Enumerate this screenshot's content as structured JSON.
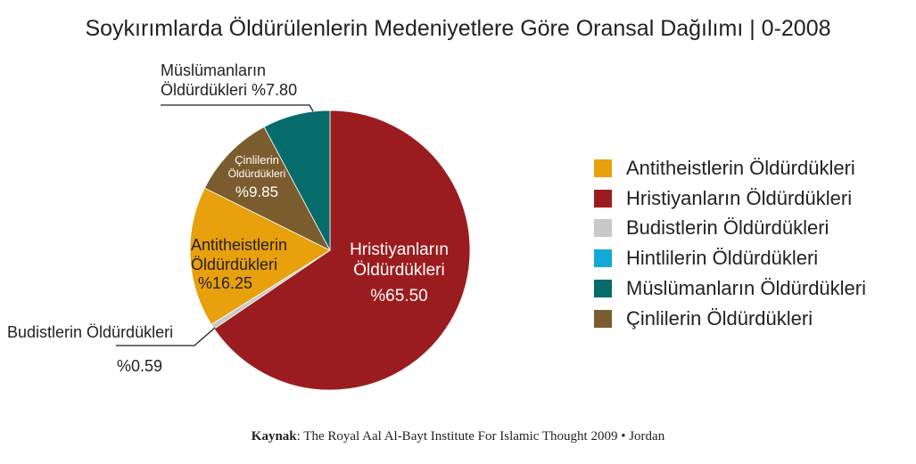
{
  "title": "Soykırımlarda Öldürülenlerin Medeniyetlere Göre Oransal Dağılımı | 0-2008",
  "chart_data": {
    "type": "pie",
    "title": "Soykırımlarda Öldürülenlerin Medeniyetlere Göre Oransal Dağılımı | 0-2008",
    "slices": [
      {
        "name": "Hristiyanların Öldürdükleri",
        "value": 65.5,
        "color": "#9b1c1f"
      },
      {
        "name": "Budistlerin Öldürdükleri",
        "value": 0.59,
        "color": "#c8c8c8"
      },
      {
        "name": "Antitheistlerin Öldürdükleri",
        "value": 16.25,
        "color": "#e8a00c"
      },
      {
        "name": "Çinlilerin Öldürdükleri",
        "value": 9.85,
        "color": "#7a5c2e"
      },
      {
        "name": "Müslümanların Öldürdükleri",
        "value": 7.8,
        "color": "#056b6b"
      }
    ],
    "legend": {
      "position": "right",
      "items": [
        {
          "label": "Antitheistlerin Öldürdükleri",
          "color": "#e8a00c"
        },
        {
          "label": "Hristiyanların Öldürdükleri",
          "color": "#9b1c1f"
        },
        {
          "label": "Budistlerin Öldürdükleri",
          "color": "#c8c8c8"
        },
        {
          "label": "Hintlilerin Öldürdükleri",
          "color": "#12a9d6"
        },
        {
          "label": "Müslümanların Öldürdükleri",
          "color": "#056b6b"
        },
        {
          "label": "Çinlilerin Öldürdükleri",
          "color": "#7a5c2e"
        }
      ]
    },
    "labels": {
      "christian": {
        "line1": "Hristiyanların",
        "line2": "Öldürdükleri",
        "pct": "%65.50"
      },
      "antitheist": {
        "line1": "Antitheistlerin",
        "line2": "Öldürdükleri",
        "pct": "%16.25"
      },
      "chinese": {
        "line1": "Çinlilerin",
        "line2": "Öldürdükleri",
        "pct": "%9.85"
      },
      "muslim": {
        "line1": "Müslümanların",
        "line2": "Öldürdükleri %7.80"
      },
      "buddhist": {
        "line1": "Budistlerin Öldürdükleri",
        "pct": "%0.59"
      }
    }
  },
  "source": {
    "prefix": "Kaynak",
    "text": ": The Royal Aal Al-Bayt Institute For Islamic Thought 2009 • Jordan"
  }
}
